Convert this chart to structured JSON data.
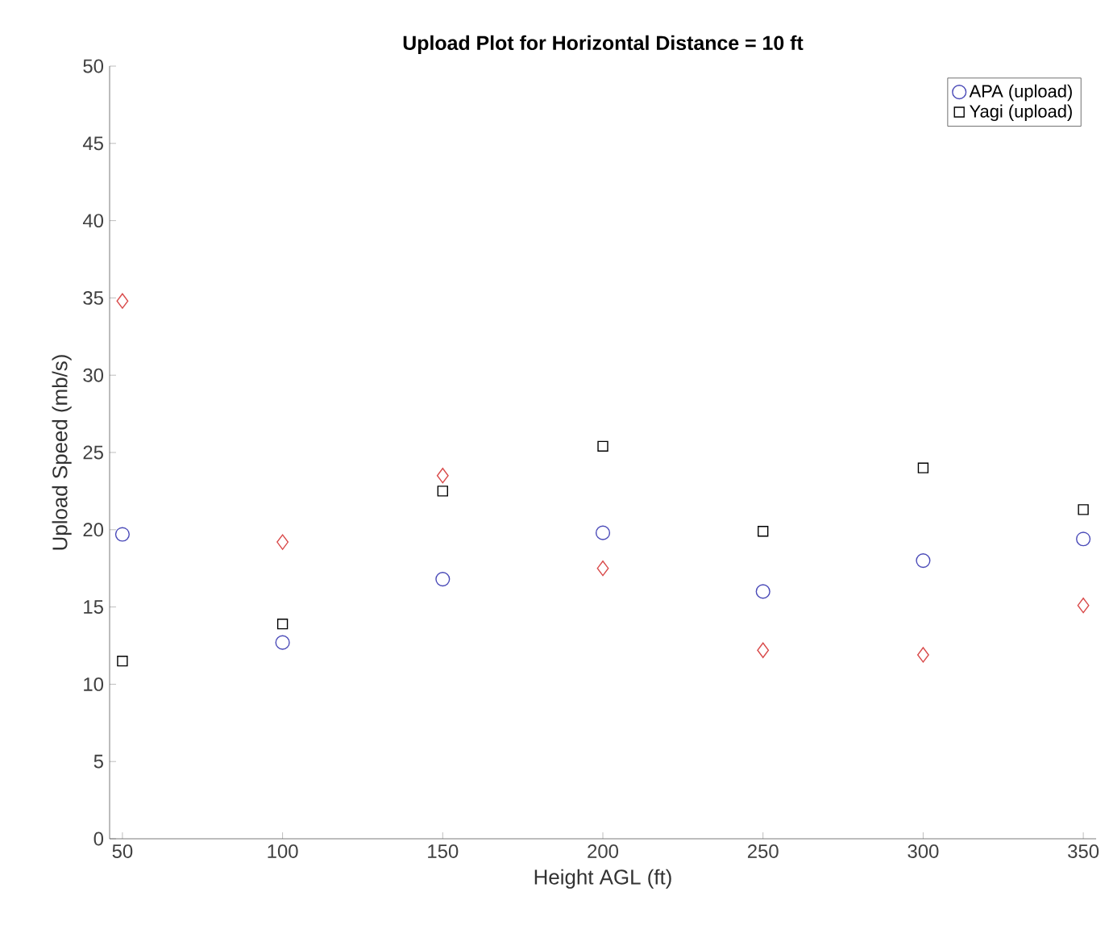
{
  "chart_data": {
    "type": "scatter",
    "title": "Upload Plot for Horizontal Distance = 10 ft",
    "xlabel": "Height AGL (ft)",
    "ylabel": "Upload Speed (mb/s)",
    "x": [
      50,
      100,
      150,
      200,
      250,
      300,
      350
    ],
    "series": [
      {
        "name": "APA (upload)",
        "color": "#4a4ab8",
        "marker": "circle",
        "values": [
          19.7,
          12.7,
          16.8,
          19.8,
          16.0,
          18.0,
          19.4
        ]
      },
      {
        "name": "Yagi (upload)",
        "color": "#000000",
        "marker": "square",
        "values": [
          11.5,
          13.9,
          22.5,
          25.4,
          19.9,
          24.0,
          21.3
        ]
      },
      {
        "color": "#d94a4a",
        "marker": "diamond",
        "values": [
          34.8,
          19.2,
          23.5,
          17.5,
          12.2,
          11.9,
          15.1
        ]
      }
    ],
    "xlim": [
      46,
      354
    ],
    "ylim": [
      0,
      50
    ],
    "xticks": [
      50,
      100,
      150,
      200,
      250,
      300,
      350
    ],
    "yticks": [
      0,
      5,
      10,
      15,
      20,
      25,
      30,
      35,
      40,
      45,
      50
    ],
    "grid": false,
    "legend": "top right"
  }
}
